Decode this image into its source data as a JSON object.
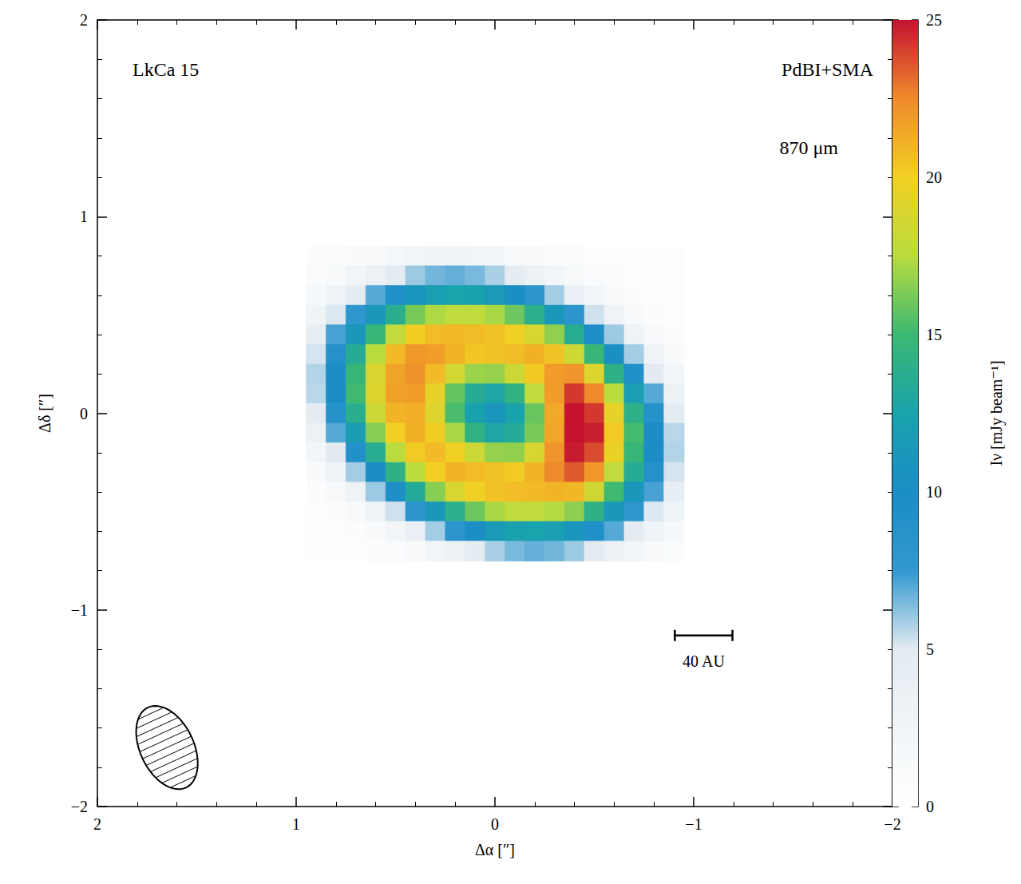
{
  "chart_data": {
    "type": "heatmap",
    "title": "LkCa 15",
    "annotations": [
      "PdBI+SMA",
      "870 μm"
    ],
    "x_label": "Δα [″]",
    "y_label": "Δδ [″]",
    "xlim": [
      2,
      -2
    ],
    "xticks": [
      2,
      1,
      0,
      {
        "value": -1,
        "label": "−1"
      },
      {
        "value": -2,
        "label": "−2"
      }
    ],
    "ylim": [
      -2,
      2
    ],
    "yticks": [
      {
        "value": -2,
        "label": "−2"
      },
      {
        "value": -1,
        "label": "−1"
      },
      0,
      1,
      2
    ],
    "x": [
      0.9,
      0.8,
      0.7,
      0.6,
      0.5,
      0.4,
      0.3,
      0.2,
      0.1,
      0,
      -0.1,
      -0.2,
      -0.3,
      -0.4,
      -0.5,
      -0.6,
      -0.7,
      -0.8,
      -0.9
    ],
    "y": [
      0.8,
      0.7,
      0.6,
      0.5,
      0.4,
      0.3,
      0.2,
      0.1,
      0,
      -0.1,
      -0.2,
      -0.3,
      -0.4,
      -0.5,
      -0.6,
      -0.7
    ],
    "intensity": [
      [
        0.7,
        0.8,
        1.2,
        1.4,
        2.0,
        2.5,
        2.7,
        2.7,
        2.6,
        2.2,
        1.5,
        1.3,
        0.9,
        0.7,
        0.5,
        0.5,
        0.5,
        0.5,
        0.5
      ],
      [
        1.0,
        1.5,
        2.5,
        3.5,
        4.9,
        6.0,
        6.6,
        6.8,
        6.5,
        5.8,
        4.7,
        3.4,
        2.4,
        1.4,
        0.9,
        0.7,
        0.5,
        0.5,
        0.5
      ],
      [
        1.6,
        3.0,
        4.9,
        7.0,
        9.3,
        11.0,
        12.0,
        12.5,
        12.3,
        11.5,
        10.1,
        8.1,
        5.9,
        3.7,
        2.2,
        1.2,
        0.7,
        0.5,
        0.5
      ],
      [
        2.8,
        5.1,
        8.0,
        11.1,
        13.8,
        16.2,
        17.3,
        17.8,
        17.8,
        17.2,
        16.0,
        13.9,
        11.2,
        8.1,
        5.3,
        2.9,
        1.4,
        0.8,
        0.5
      ],
      [
        4.1,
        7.2,
        11.1,
        14.8,
        17.9,
        20.1,
        20.7,
        20.8,
        20.7,
        20.5,
        19.9,
        18.8,
        16.7,
        13.6,
        9.8,
        6.0,
        3.1,
        1.4,
        0.8
      ],
      [
        5.2,
        9.0,
        13.5,
        17.5,
        20.8,
        22.0,
        21.8,
        21.0,
        20.4,
        20.5,
        20.7,
        21.1,
        20.5,
        18.4,
        14.8,
        10.2,
        5.9,
        2.9,
        1.3
      ],
      [
        5.7,
        9.9,
        14.7,
        18.9,
        21.6,
        22.2,
        20.8,
        18.6,
        16.9,
        16.8,
        18.3,
        20.3,
        21.9,
        22.1,
        19.1,
        14.2,
        9.2,
        5.0,
        2.3
      ],
      [
        5.6,
        9.9,
        15.1,
        19.1,
        21.7,
        21.8,
        19.5,
        15.8,
        13.5,
        12.8,
        14.3,
        17.8,
        21.9,
        24.2,
        22.5,
        17.6,
        12.0,
        7.0,
        3.4
      ],
      [
        4.8,
        8.9,
        13.8,
        18.3,
        21.0,
        21.2,
        19.1,
        15.3,
        12.2,
        11.0,
        12.3,
        15.9,
        21.4,
        25.2,
        24.2,
        19.5,
        14.1,
        8.9,
        4.8
      ],
      [
        3.4,
        7.0,
        11.8,
        16.5,
        20.0,
        21.1,
        20.1,
        17.2,
        14.3,
        12.8,
        13.4,
        16.2,
        21.5,
        25.5,
        24.7,
        20.2,
        15.2,
        9.9,
        5.6
      ],
      [
        2.3,
        5.0,
        9.1,
        13.6,
        17.6,
        20.2,
        20.8,
        19.9,
        18.3,
        16.8,
        16.7,
        18.8,
        22.1,
        24.8,
        23.8,
        19.7,
        14.8,
        9.9,
        5.7
      ],
      [
        1.3,
        2.9,
        5.9,
        9.9,
        14.1,
        17.6,
        20.0,
        21.0,
        20.7,
        20.5,
        20.2,
        21.0,
        22.5,
        23.5,
        22.0,
        17.9,
        13.5,
        9.0,
        5.2
      ],
      [
        0.8,
        1.4,
        3.1,
        6.0,
        9.6,
        13.3,
        16.5,
        18.8,
        19.9,
        20.5,
        20.7,
        20.8,
        21.0,
        20.9,
        18.5,
        15.1,
        11.1,
        7.2,
        4.1
      ],
      [
        0.5,
        0.8,
        1.4,
        2.9,
        5.3,
        8.1,
        11.2,
        13.9,
        16.0,
        17.2,
        17.8,
        17.8,
        17.4,
        16.6,
        14.1,
        11.1,
        8.0,
        5.1,
        2.8
      ],
      [
        0.5,
        0.5,
        0.7,
        1.2,
        2.2,
        3.7,
        5.9,
        8.1,
        10.1,
        11.5,
        12.3,
        12.5,
        12.0,
        11.0,
        9.3,
        7.0,
        4.9,
        3.0,
        1.6
      ],
      [
        0.5,
        0.5,
        0.5,
        0.7,
        0.9,
        1.4,
        2.4,
        3.4,
        4.7,
        5.8,
        6.5,
        6.8,
        6.6,
        6.0,
        4.9,
        3.5,
        2.5,
        1.5,
        1.0
      ]
    ],
    "colorbar": {
      "label": "Iν [mJy beam⁻¹]",
      "range": [
        0,
        25
      ],
      "ticks": [
        0,
        5,
        10,
        15,
        20,
        25
      ],
      "colors": [
        "#ffffff",
        "#f1f5f8",
        "#e3ebf1",
        "#3298cf",
        "#1b8dc6",
        "#19a3ac",
        "#3bb872",
        "#b9dc3f",
        "#f2d023",
        "#ef8a2c",
        "#c4122f"
      ]
    },
    "scale_bar": {
      "label": "40 AU",
      "length": 0.29
    },
    "beam": {
      "major": 0.45,
      "minor": 0.27,
      "pa": 25
    }
  }
}
